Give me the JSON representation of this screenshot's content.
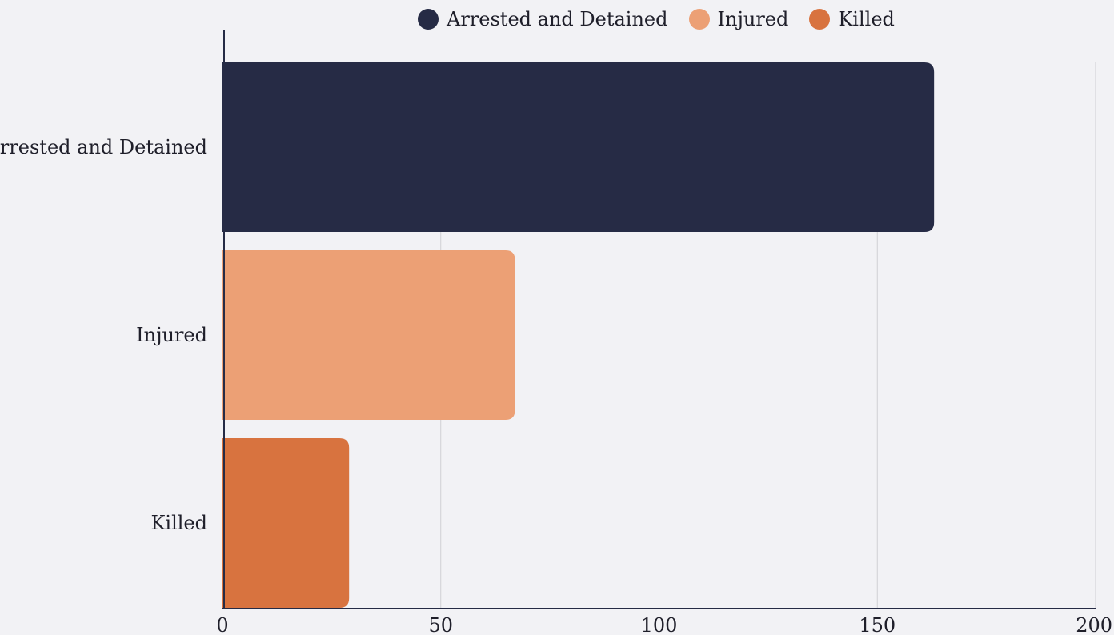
{
  "chart_data": {
    "type": "bar",
    "orientation": "horizontal",
    "categories": [
      "Arrested and Detained",
      "Injured",
      "Killed"
    ],
    "values": [
      163,
      67,
      29
    ],
    "colors": [
      "#262b45",
      "#eca075",
      "#d8733f"
    ],
    "xlim": [
      0,
      200
    ],
    "xticks": [
      "0",
      "50",
      "100",
      "150",
      "200"
    ],
    "xtick_values": [
      0,
      50,
      100,
      150,
      200
    ],
    "grid": "vertical",
    "legend": {
      "placement": "top",
      "entries": [
        "Arrested and Detained",
        "Injured",
        "Killed"
      ]
    }
  }
}
